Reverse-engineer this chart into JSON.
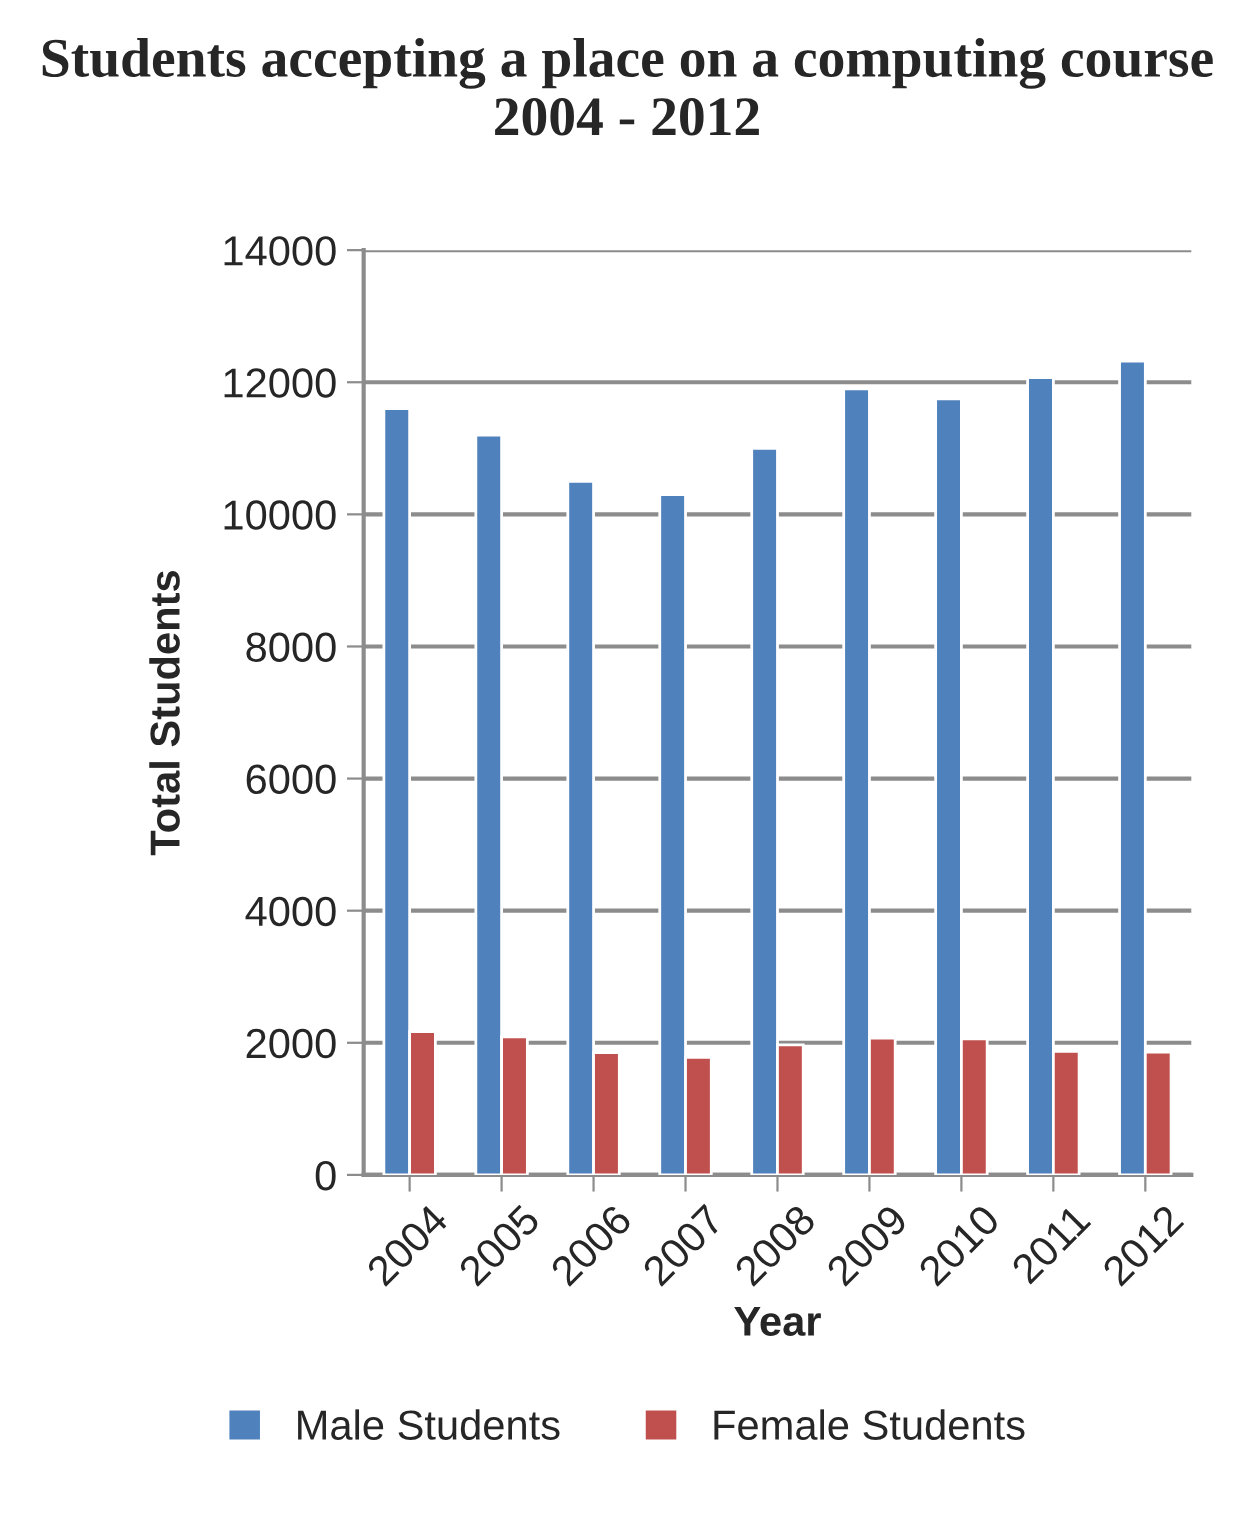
{
  "chart_data": {
    "type": "bar",
    "title": "Students accepting a place on a computing course 2004 - 2012",
    "xlabel": "Year",
    "ylabel": "Total Students",
    "categories": [
      "2004",
      "2005",
      "2006",
      "2007",
      "2008",
      "2009",
      "2010",
      "2011",
      "2012"
    ],
    "series": [
      {
        "name": "Male Students",
        "color": "#4f81bd",
        "values": [
          11600,
          11200,
          10500,
          10300,
          11000,
          11900,
          11750,
          12070,
          12320
        ]
      },
      {
        "name": "Female Students",
        "color": "#c0504d",
        "values": [
          2170,
          2090,
          1850,
          1780,
          1970,
          2070,
          2060,
          1870,
          1860
        ]
      }
    ],
    "ylim": [
      0,
      14000
    ],
    "yticks": [
      0,
      2000,
      4000,
      6000,
      8000,
      10000,
      12000,
      14000
    ],
    "grid": "y",
    "legend": "bottom"
  }
}
